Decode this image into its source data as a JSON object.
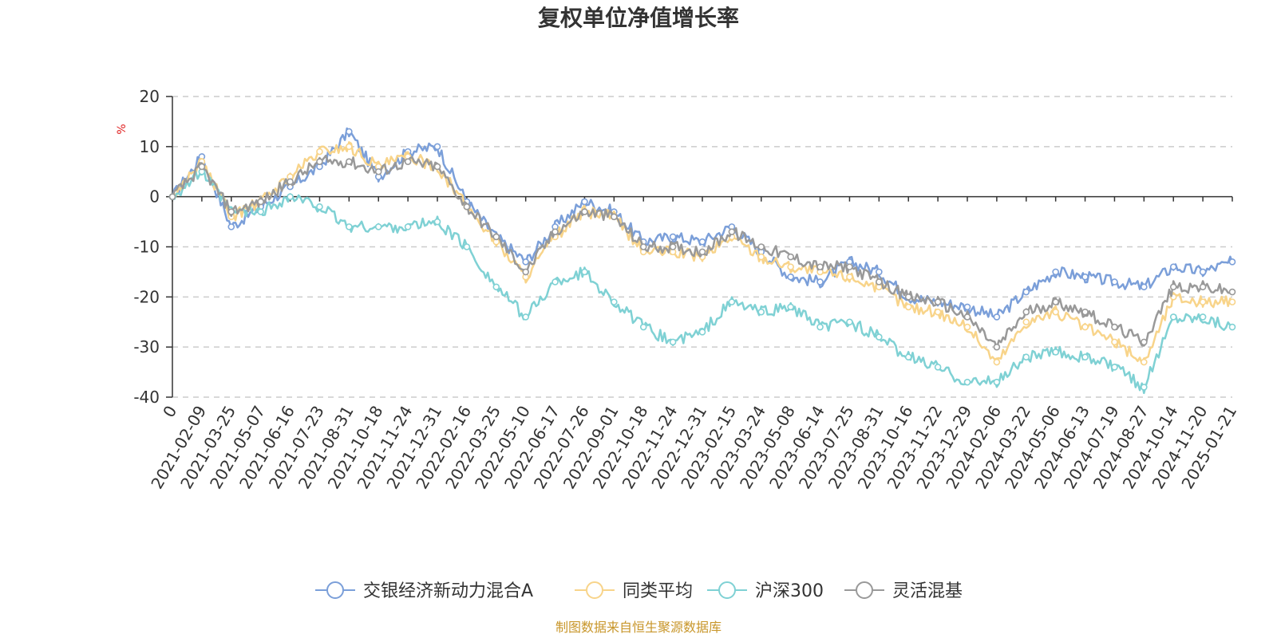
{
  "chart_data": {
    "type": "line",
    "title": "复权单位净值增长率",
    "ylabel": "%",
    "xlabel": "",
    "ylim": [
      -40,
      20
    ],
    "yticks": [
      20,
      10,
      0,
      -10,
      -20,
      -30,
      -40
    ],
    "categories": [
      "0",
      "2021-02-09",
      "2021-03-25",
      "2021-05-07",
      "2021-06-16",
      "2021-07-23",
      "2021-08-31",
      "2021-10-18",
      "2021-11-24",
      "2021-12-31",
      "2022-02-16",
      "2022-03-25",
      "2022-05-10",
      "2022-06-17",
      "2022-07-26",
      "2022-09-01",
      "2022-10-18",
      "2022-11-24",
      "2022-12-31",
      "2023-02-15",
      "2023-03-24",
      "2023-05-08",
      "2023-06-14",
      "2023-07-25",
      "2023-08-31",
      "2023-10-16",
      "2023-11-22",
      "2023-12-29",
      "2024-02-06",
      "2024-03-22",
      "2024-05-06",
      "2024-06-13",
      "2024-07-19",
      "2024-08-27",
      "2024-10-14",
      "2024-11-20",
      "2025-01-21"
    ],
    "series": [
      {
        "name": "交银经济新动力混合A",
        "color": "#7b9fd9",
        "values": [
          0,
          8,
          -6,
          -2,
          2,
          6,
          13,
          4,
          9,
          10,
          -1,
          -8,
          -13,
          -6,
          -1,
          -3,
          -9,
          -8,
          -9,
          -6,
          -11,
          -16,
          -17,
          -13,
          -15,
          -20,
          -21,
          -22,
          -24,
          -19,
          -15,
          -16,
          -17,
          -18,
          -14,
          -15,
          -13
        ]
      },
      {
        "name": "同类平均",
        "color": "#f8d48a",
        "values": [
          0,
          7,
          -4,
          -1,
          4,
          9,
          10,
          6,
          8,
          6,
          -2,
          -9,
          -16,
          -8,
          -3,
          -4,
          -11,
          -11,
          -12,
          -8,
          -12,
          -14,
          -15,
          -16,
          -18,
          -22,
          -23,
          -26,
          -33,
          -25,
          -23,
          -26,
          -29,
          -33,
          -20,
          -21,
          -21
        ]
      },
      {
        "name": "沪深300",
        "color": "#7fd1d4",
        "values": [
          0,
          5,
          -3,
          -3,
          0,
          -2,
          -6,
          -6,
          -6,
          -5,
          -10,
          -18,
          -24,
          -17,
          -15,
          -21,
          -26,
          -29,
          -27,
          -21,
          -23,
          -22,
          -26,
          -25,
          -28,
          -32,
          -34,
          -37,
          -37,
          -32,
          -31,
          -32,
          -34,
          -38,
          -24,
          -24,
          -26
        ]
      },
      {
        "name": "灵活混基",
        "color": "#999999",
        "values": [
          0,
          6,
          -3,
          -1,
          3,
          7,
          7,
          5,
          7,
          6,
          -2,
          -8,
          -15,
          -7,
          -3,
          -4,
          -10,
          -10,
          -11,
          -7,
          -10,
          -12,
          -14,
          -14,
          -17,
          -20,
          -21,
          -24,
          -30,
          -23,
          -21,
          -23,
          -26,
          -29,
          -18,
          -18,
          -19
        ]
      }
    ]
  },
  "source_text": "制图数据来自恒生聚源数据库"
}
